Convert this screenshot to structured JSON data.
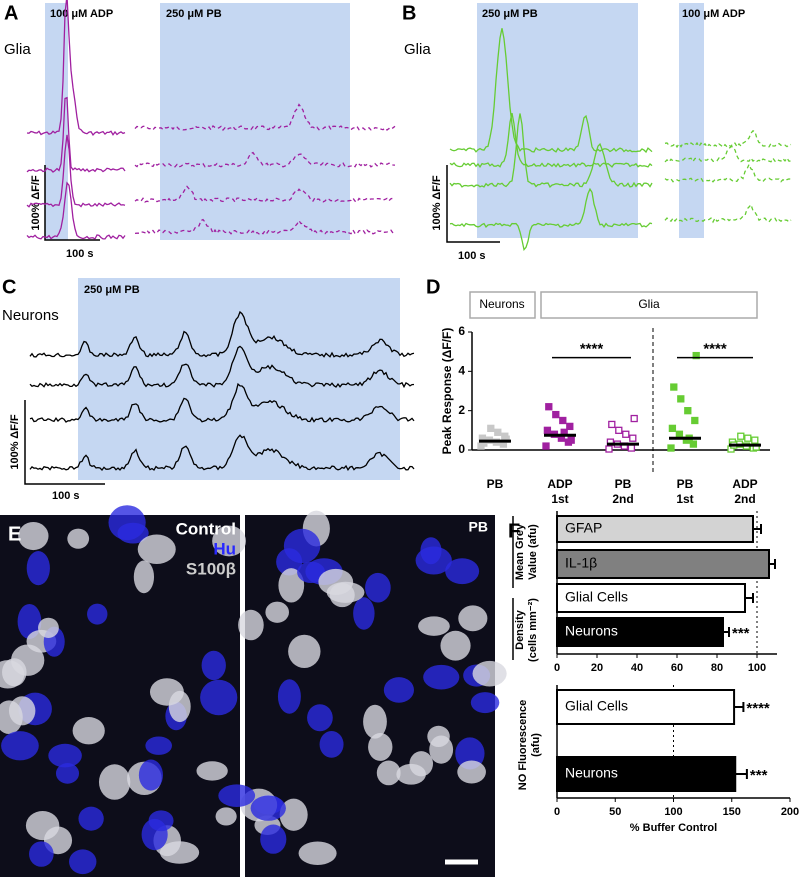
{
  "panels": {
    "A": {
      "label": "A",
      "title": "Glia",
      "stims": [
        "100 μM ADP",
        "250 μM PB"
      ],
      "scale_y": "100% ΔF/F",
      "scale_x": "100 s"
    },
    "B": {
      "label": "B",
      "title": "Glia",
      "stims": [
        "250 μM PB",
        "100 μM ADP"
      ],
      "scale_y": "100% ΔF/F",
      "scale_x": "100 s"
    },
    "C": {
      "label": "C",
      "title": "Neurons",
      "stims": [
        "250 μM PB"
      ],
      "scale_y": "100% ΔF/F",
      "scale_x": "100 s"
    },
    "D": {
      "label": "D",
      "groups": [
        "Neurons",
        "Glia"
      ]
    },
    "E": {
      "label": "E",
      "legend": [
        "Control",
        "Hu",
        "S100β"
      ],
      "second": "PB"
    },
    "F": {
      "label": "F",
      "group_labels": [
        [
          "Mean Grey",
          "Value (afu)"
        ],
        [
          "Density",
          "(cells mm⁻²)"
        ],
        [
          "NO Fluorescence",
          "(afu)"
        ]
      ]
    }
  },
  "chart_data": [
    {
      "type": "dot",
      "ylabel": "Peak Response (ΔF/F)",
      "categories": [
        [
          "PB"
        ],
        [
          "ADP",
          "1st"
        ],
        [
          "PB",
          "2nd"
        ],
        [
          "PB",
          "1st"
        ],
        [
          "ADP",
          "2nd"
        ]
      ],
      "values": [
        0.45,
        0.75,
        0.3,
        0.6,
        0.25
      ],
      "colors": [
        "#c8c8c8",
        "#a020a0",
        "#a020a0",
        "#66cc33",
        "#66cc33"
      ],
      "open": [
        false,
        false,
        true,
        false,
        true
      ],
      "points": [
        [
          0.2,
          0.3,
          0.4,
          0.5,
          0.6,
          0.7,
          0.9,
          1.1,
          0.35,
          0.55
        ],
        [
          0.2,
          0.4,
          0.6,
          0.8,
          1.0,
          1.2,
          1.5,
          1.8,
          2.2,
          0.5,
          0.9
        ],
        [
          0.05,
          0.1,
          0.2,
          0.3,
          0.4,
          0.6,
          0.8,
          1.0,
          1.3,
          1.6
        ],
        [
          0.1,
          0.3,
          0.5,
          0.8,
          1.1,
          1.5,
          2.0,
          2.6,
          3.2,
          4.8,
          0.6
        ],
        [
          0.05,
          0.1,
          0.2,
          0.3,
          0.4,
          0.5,
          0.6,
          0.7,
          0.25,
          0.15
        ]
      ],
      "ylim": [
        0,
        6
      ],
      "yticks": [
        0,
        2,
        4,
        6
      ],
      "brackets": [
        {
          "text": "****",
          "from": 1,
          "to": 2,
          "y": 4.7
        },
        {
          "text": "****",
          "from": 3,
          "to": 4,
          "y": 4.7
        }
      ]
    },
    {
      "type": "hbar",
      "categories": [
        "GFAP",
        "IL-1β",
        "Glial Cells",
        "Neurons"
      ],
      "values": [
        98,
        106,
        94,
        83
      ],
      "errors": [
        4,
        3,
        4,
        3
      ],
      "colors": [
        "#d3d3d3",
        "#808080",
        "#ffffff",
        "#000000"
      ],
      "significance": [
        null,
        null,
        null,
        "***"
      ],
      "xlim": [
        0,
        110
      ],
      "xticks": [
        0,
        20,
        40,
        60,
        80,
        100
      ],
      "reference": 100
    },
    {
      "type": "hbar",
      "categories": [
        "Glial Cells",
        "Neurons"
      ],
      "values": [
        152,
        153
      ],
      "errors": [
        8,
        10
      ],
      "colors": [
        "#ffffff",
        "#000000"
      ],
      "significance": [
        "****",
        "***"
      ],
      "xlim": [
        0,
        200
      ],
      "xticks": [
        0,
        50,
        100,
        150,
        200
      ],
      "reference": 100,
      "xlabel": "% Buffer Control"
    }
  ]
}
